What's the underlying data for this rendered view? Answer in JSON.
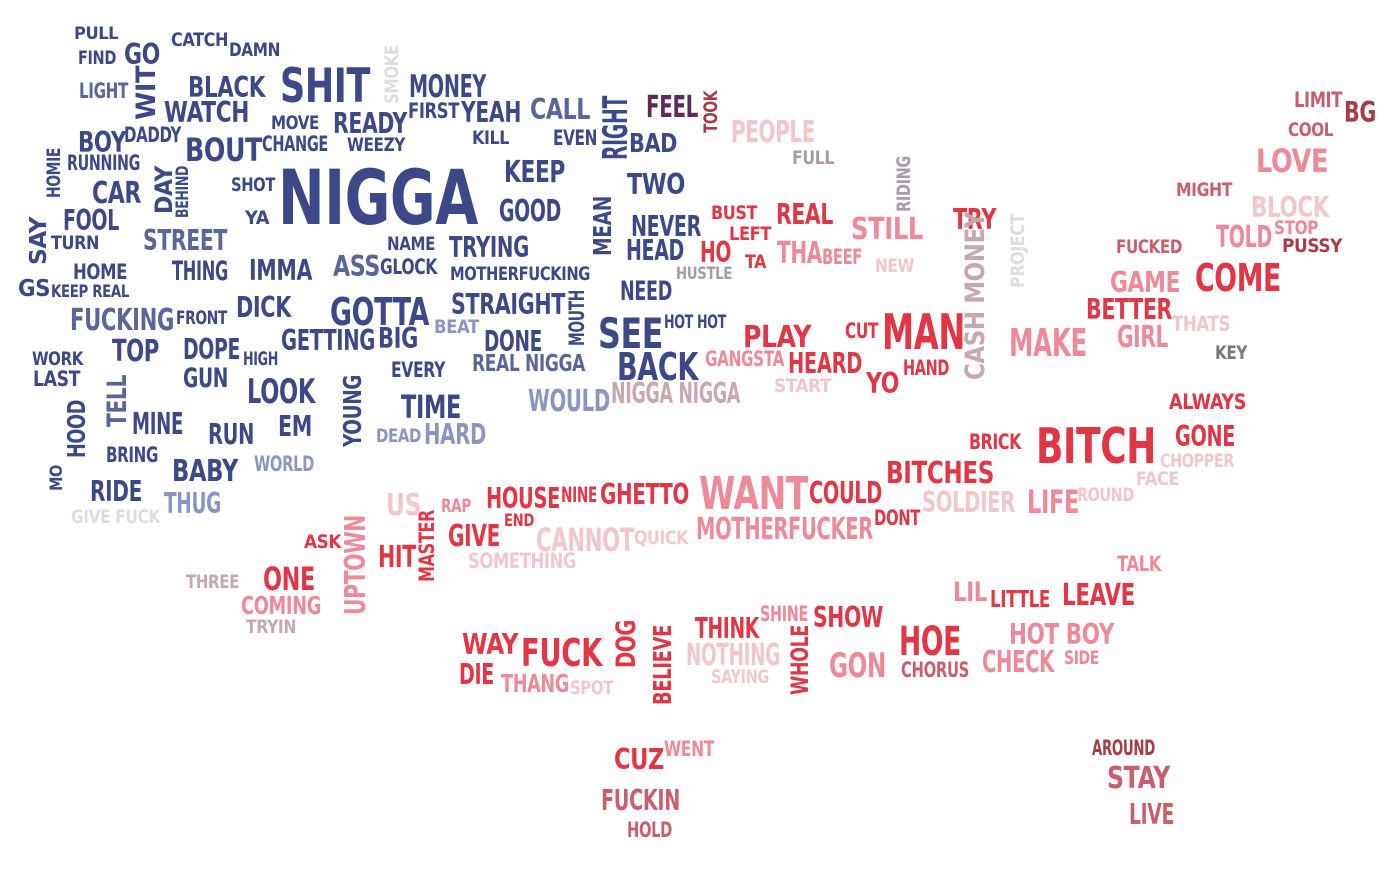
{
  "palette": {
    "navy": "#3c4887",
    "slate": "#5a6699",
    "lavender": "#8c95c0",
    "pale_gray": "#dddddd",
    "mauve_gray": "#a99aa8",
    "red": "#e03646",
    "pink": "#ee8a98",
    "pale_pink": "#f2c7cc",
    "rose": "#c7606c",
    "dark_red": "#a63c45",
    "plum": "#5e2a5c",
    "gray": "#777777"
  },
  "words": [
    {
      "text": "PULL",
      "color": "#3c4887"
    },
    {
      "text": "FIND",
      "color": "#3c4887"
    },
    {
      "text": "GO",
      "color": "#3c4887"
    },
    {
      "text": "CATCH",
      "color": "#3c4887"
    },
    {
      "text": "DAMN",
      "color": "#3c4887"
    },
    {
      "text": "LIGHT",
      "color": "#5a6699"
    },
    {
      "text": "WIT",
      "color": "#3c4887"
    },
    {
      "text": "BLACK",
      "color": "#3c4887"
    },
    {
      "text": "SHIT",
      "color": "#3c4887"
    },
    {
      "text": "SMOKE",
      "color": "#dddddd"
    },
    {
      "text": "MONEY",
      "color": "#3c4887"
    },
    {
      "text": "WATCH",
      "color": "#3c4887"
    },
    {
      "text": "FIRST",
      "color": "#3c4887"
    },
    {
      "text": "YEAH",
      "color": "#3c4887"
    },
    {
      "text": "CALL",
      "color": "#5a6699"
    },
    {
      "text": "RIGHT",
      "color": "#3c4887"
    },
    {
      "text": "FEEL",
      "color": "#5e2a5c"
    },
    {
      "text": "TOOK",
      "color": "#a63c45"
    },
    {
      "text": "MOVE",
      "color": "#3c4887"
    },
    {
      "text": "READY",
      "color": "#3c4887"
    },
    {
      "text": "BOY",
      "color": "#3c4887"
    },
    {
      "text": "DADDY",
      "color": "#3c4887"
    },
    {
      "text": "BOUT",
      "color": "#3c4887"
    },
    {
      "text": "CHANGE",
      "color": "#3c4887"
    },
    {
      "text": "WEEZY",
      "color": "#3c4887"
    },
    {
      "text": "KILL",
      "color": "#3c4887"
    },
    {
      "text": "EVEN",
      "color": "#3c4887"
    },
    {
      "text": "BAD",
      "color": "#3c4887"
    },
    {
      "text": "PEOPLE",
      "color": "#f2c7cc"
    },
    {
      "text": "HOMIE",
      "color": "#3c4887"
    },
    {
      "text": "RUNNING",
      "color": "#3c4887"
    },
    {
      "text": "FULL",
      "color": "#a99aa8"
    },
    {
      "text": "NIGGA",
      "color": "#3c4887"
    },
    {
      "text": "KEEP",
      "color": "#3c4887"
    },
    {
      "text": "TWO",
      "color": "#3c4887"
    },
    {
      "text": "CAR",
      "color": "#3c4887"
    },
    {
      "text": "DAY",
      "color": "#3c4887"
    },
    {
      "text": "BEHIND",
      "color": "#3c4887"
    },
    {
      "text": "SHOT",
      "color": "#3c4887"
    },
    {
      "text": "RIDING",
      "color": "#a99aa8"
    },
    {
      "text": "MIGHT",
      "color": "#c7606c"
    },
    {
      "text": "LIMIT",
      "color": "#c7606c"
    },
    {
      "text": "BG",
      "color": "#a63c45"
    },
    {
      "text": "COOL",
      "color": "#c7606c"
    },
    {
      "text": "LOVE",
      "color": "#ee8a98"
    },
    {
      "text": "FOOL",
      "color": "#3c4887"
    },
    {
      "text": "YA",
      "color": "#3c4887"
    },
    {
      "text": "GOOD",
      "color": "#3c4887"
    },
    {
      "text": "MEAN",
      "color": "#3c4887"
    },
    {
      "text": "NEVER",
      "color": "#3c4887"
    },
    {
      "text": "BUST",
      "color": "#e03646"
    },
    {
      "text": "LEFT",
      "color": "#e03646"
    },
    {
      "text": "REAL",
      "color": "#e03646"
    },
    {
      "text": "STILL",
      "color": "#ee8a98"
    },
    {
      "text": "TRY",
      "color": "#e03646"
    },
    {
      "text": "PROJECT",
      "color": "#dddddd"
    },
    {
      "text": "BLOCK",
      "color": "#f2c7cc"
    },
    {
      "text": "SAY",
      "color": "#3c4887"
    },
    {
      "text": "TURN",
      "color": "#3c4887"
    },
    {
      "text": "STREET",
      "color": "#5a6699"
    },
    {
      "text": "NAME",
      "color": "#3c4887"
    },
    {
      "text": "TRYING",
      "color": "#3c4887"
    },
    {
      "text": "HEAD",
      "color": "#3c4887"
    },
    {
      "text": "HO",
      "color": "#e03646"
    },
    {
      "text": "TA",
      "color": "#e03646"
    },
    {
      "text": "THA",
      "color": "#ee8a98"
    },
    {
      "text": "BEEF",
      "color": "#ee8a98"
    },
    {
      "text": "TOLD",
      "color": "#ee8a98"
    },
    {
      "text": "STOP",
      "color": "#ee8a98"
    },
    {
      "text": "PUSSY",
      "color": "#a63c45"
    },
    {
      "text": "FUCKED",
      "color": "#c7606c"
    },
    {
      "text": "HOME",
      "color": "#3c4887"
    },
    {
      "text": "THING",
      "color": "#3c4887"
    },
    {
      "text": "IMMA",
      "color": "#3c4887"
    },
    {
      "text": "ASS",
      "color": "#5a6699"
    },
    {
      "text": "GLOCK",
      "color": "#3c4887"
    },
    {
      "text": "MOTHERFUCKING",
      "color": "#3c4887"
    },
    {
      "text": "HUSTLE",
      "color": "#a99aa8"
    },
    {
      "text": "NEW",
      "color": "#f2c7cc"
    },
    {
      "text": "CASH MONEY",
      "color": "#c7a8ad"
    },
    {
      "text": "GAME",
      "color": "#ee8a98"
    },
    {
      "text": "COME",
      "color": "#e03646"
    },
    {
      "text": "GS",
      "color": "#3c4887"
    },
    {
      "text": "KEEP REAL",
      "color": "#3c4887"
    },
    {
      "text": "NEED",
      "color": "#3c4887"
    },
    {
      "text": "BETTER",
      "color": "#e03646"
    },
    {
      "text": "FUCKING",
      "color": "#5a6699"
    },
    {
      "text": "FRONT",
      "color": "#3c4887"
    },
    {
      "text": "DICK",
      "color": "#3c4887"
    },
    {
      "text": "GOTTA",
      "color": "#3c4887"
    },
    {
      "text": "STRAIGHT",
      "color": "#3c4887"
    },
    {
      "text": "BEAT",
      "color": "#8c95c0"
    },
    {
      "text": "MOUTH",
      "color": "#3c4887"
    },
    {
      "text": "SEE",
      "color": "#3c4887"
    },
    {
      "text": "HOT HOT",
      "color": "#3c4887"
    },
    {
      "text": "CUT",
      "color": "#e03646"
    },
    {
      "text": "MAN",
      "color": "#e03646"
    },
    {
      "text": "THATS",
      "color": "#f2c7cc"
    },
    {
      "text": "GIRL",
      "color": "#ee8a98"
    },
    {
      "text": "MAKE",
      "color": "#ee8a98"
    },
    {
      "text": "KEY",
      "color": "#777777"
    },
    {
      "text": "WORK",
      "color": "#3c4887"
    },
    {
      "text": "LAST",
      "color": "#3c4887"
    },
    {
      "text": "TOP",
      "color": "#3c4887"
    },
    {
      "text": "DOPE",
      "color": "#3c4887"
    },
    {
      "text": "HIGH",
      "color": "#3c4887"
    },
    {
      "text": "GETTING",
      "color": "#3c4887"
    },
    {
      "text": "BIG",
      "color": "#3c4887"
    },
    {
      "text": "DONE",
      "color": "#3c4887"
    },
    {
      "text": "REAL NIGGA",
      "color": "#5a6699"
    },
    {
      "text": "BACK",
      "color": "#3c4887"
    },
    {
      "text": "PLAY",
      "color": "#e03646"
    },
    {
      "text": "GANGSTA",
      "color": "#ee8a98"
    },
    {
      "text": "HEARD",
      "color": "#e03646"
    },
    {
      "text": "HAND",
      "color": "#e03646"
    },
    {
      "text": "YO",
      "color": "#e03646"
    },
    {
      "text": "START",
      "color": "#f2c7cc"
    },
    {
      "text": "GUN",
      "color": "#3c4887"
    },
    {
      "text": "LOOK",
      "color": "#3c4887"
    },
    {
      "text": "YOUNG",
      "color": "#3c4887"
    },
    {
      "text": "EVERY",
      "color": "#3c4887"
    },
    {
      "text": "WOULD",
      "color": "#8c95c0"
    },
    {
      "text": "NIGGA NIGGA",
      "color": "#c7a8ad"
    },
    {
      "text": "ALWAYS",
      "color": "#e03646"
    },
    {
      "text": "TELL",
      "color": "#5a6699"
    },
    {
      "text": "TIME",
      "color": "#3c4887"
    },
    {
      "text": "HOOD",
      "color": "#3c4887"
    },
    {
      "text": "MINE",
      "color": "#3c4887"
    },
    {
      "text": "RUN",
      "color": "#3c4887"
    },
    {
      "text": "EM",
      "color": "#3c4887"
    },
    {
      "text": "DEAD",
      "color": "#8c95c0"
    },
    {
      "text": "HARD",
      "color": "#8c95c0"
    },
    {
      "text": "BRICK",
      "color": "#e03646"
    },
    {
      "text": "BITCH",
      "color": "#e03646"
    },
    {
      "text": "GONE",
      "color": "#e03646"
    },
    {
      "text": "CHOPPER",
      "color": "#f2c7cc"
    },
    {
      "text": "FACE",
      "color": "#f2c7cc"
    },
    {
      "text": "BRING",
      "color": "#3c4887"
    },
    {
      "text": "BABY",
      "color": "#3c4887"
    },
    {
      "text": "WORLD",
      "color": "#8c95c0"
    },
    {
      "text": "BITCHES",
      "color": "#e03646"
    },
    {
      "text": "MO",
      "color": "#3c4887"
    },
    {
      "text": "RIDE",
      "color": "#3c4887"
    },
    {
      "text": "THUG",
      "color": "#8c95c0"
    },
    {
      "text": "US",
      "color": "#f2c7cc"
    },
    {
      "text": "RAP",
      "color": "#ee8a98"
    },
    {
      "text": "HOUSE",
      "color": "#e03646"
    },
    {
      "text": "NINE",
      "color": "#e03646"
    },
    {
      "text": "GHETTO",
      "color": "#e03646"
    },
    {
      "text": "WANT",
      "color": "#ee8a98"
    },
    {
      "text": "COULD",
      "color": "#e03646"
    },
    {
      "text": "SOLDIER",
      "color": "#f2c7cc"
    },
    {
      "text": "LIFE",
      "color": "#ee8a98"
    },
    {
      "text": "ROUND",
      "color": "#f2c7cc"
    },
    {
      "text": "GIVE FUCK",
      "color": "#dddddd"
    },
    {
      "text": "END",
      "color": "#e03646"
    },
    {
      "text": "MASTER",
      "color": "#e03646"
    },
    {
      "text": "CANNOT",
      "color": "#f2c7cc"
    },
    {
      "text": "QUICK",
      "color": "#f2c7cc"
    },
    {
      "text": "MOTHERFUCKER",
      "color": "#ee8a98"
    },
    {
      "text": "DONT",
      "color": "#e03646"
    },
    {
      "text": "ASK",
      "color": "#e03646"
    },
    {
      "text": "UPTOWN",
      "color": "#ee8a98"
    },
    {
      "text": "HIT",
      "color": "#e03646"
    },
    {
      "text": "GIVE",
      "color": "#e03646"
    },
    {
      "text": "SOMETHING",
      "color": "#f2c7cc"
    },
    {
      "text": "TALK",
      "color": "#ee8a98"
    },
    {
      "text": "THREE",
      "color": "#c7a8ad"
    },
    {
      "text": "ONE",
      "color": "#e03646"
    },
    {
      "text": "COMING",
      "color": "#ee8a98"
    },
    {
      "text": "TRYIN",
      "color": "#c7a8ad"
    },
    {
      "text": "LIL",
      "color": "#ee8a98"
    },
    {
      "text": "LITTLE",
      "color": "#e03646"
    },
    {
      "text": "LEAVE",
      "color": "#e03646"
    },
    {
      "text": "SHINE",
      "color": "#ee8a98"
    },
    {
      "text": "THINK",
      "color": "#e03646"
    },
    {
      "text": "SHOW",
      "color": "#e03646"
    },
    {
      "text": "HOE",
      "color": "#e03646"
    },
    {
      "text": "HOT BOY",
      "color": "#ee8a98"
    },
    {
      "text": "SIDE",
      "color": "#ee8a98"
    },
    {
      "text": "WAY",
      "color": "#e03646"
    },
    {
      "text": "FUCK",
      "color": "#e03646"
    },
    {
      "text": "DOG",
      "color": "#e03646"
    },
    {
      "text": "BELIEVE",
      "color": "#e03646"
    },
    {
      "text": "NOTHING",
      "color": "#f2c7cc"
    },
    {
      "text": "WHOLE",
      "color": "#e03646"
    },
    {
      "text": "GON",
      "color": "#ee8a98"
    },
    {
      "text": "CHORUS",
      "color": "#c7606c"
    },
    {
      "text": "CHECK",
      "color": "#ee8a98"
    },
    {
      "text": "DIE",
      "color": "#e03646"
    },
    {
      "text": "THANG",
      "color": "#ee8a98"
    },
    {
      "text": "SPOT",
      "color": "#f2c7cc"
    },
    {
      "text": "SAYING",
      "color": "#f2c7cc"
    },
    {
      "text": "AROUND",
      "color": "#a63c45"
    },
    {
      "text": "WENT",
      "color": "#ee8a98"
    },
    {
      "text": "CUZ",
      "color": "#e03646"
    },
    {
      "text": "STAY",
      "color": "#c7606c"
    },
    {
      "text": "FUCKIN",
      "color": "#c7606c"
    },
    {
      "text": "LIVE",
      "color": "#c7606c"
    },
    {
      "text": "HOLD",
      "color": "#c7606c"
    }
  ]
}
